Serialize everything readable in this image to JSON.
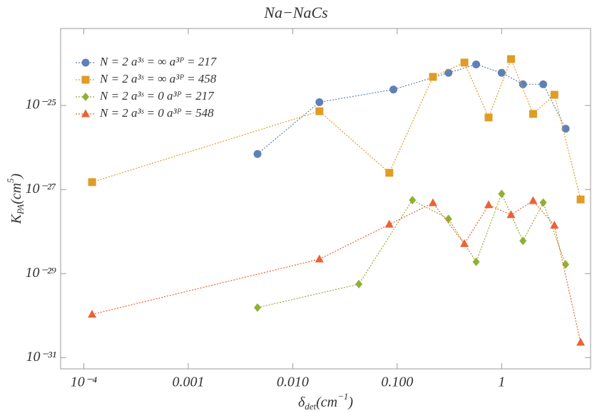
{
  "chart_data": {
    "type": "line",
    "title": "Na−NaCs",
    "x_label": [
      "δ",
      "det",
      "(cm",
      "−1",
      ")"
    ],
    "y_label": [
      "K",
      "PA",
      "(cm",
      "5",
      ")"
    ],
    "log_x": true,
    "log_y": true,
    "grid": false,
    "legend": "top-left",
    "xlim": [
      6e-05,
      7.1
    ],
    "ylim": [
      5.4e-32,
      6.8e-24
    ],
    "xticks": [
      {
        "value": 0.0001,
        "label": "10⁻⁴"
      },
      0.001,
      {
        "value": 0.01,
        "label": "0.010"
      },
      {
        "value": 0.1,
        "label": "0.100"
      },
      1
    ],
    "yticks": [
      {
        "value": 1e-31,
        "label": "10⁻³¹"
      },
      {
        "value": 1e-29,
        "label": "10⁻²⁹"
      },
      {
        "value": 1e-27,
        "label": "10⁻²⁷"
      },
      {
        "value": 1e-25,
        "label": "10⁻²⁵"
      }
    ],
    "series": [
      {
        "name": "N = 2 a³ˢ = ∞ a³ᴾ = 217",
        "color": "#5e81b5",
        "marker": "circle",
        "x": [
          0.0046,
          0.018,
          0.092,
          0.31,
          0.57,
          1.0,
          1.6,
          2.5,
          4.1
        ],
        "values": [
          7e-27,
          1.2e-25,
          2.4e-25,
          6e-25,
          9.5e-25,
          6e-25,
          3.2e-25,
          3.2e-25,
          2.8e-26
        ]
      },
      {
        "name": "N = 2 a³ˢ = ∞ a³ᴾ = 458",
        "color": "#e19c24",
        "marker": "square",
        "x": [
          0.00012,
          0.018,
          0.084,
          0.22,
          0.44,
          0.75,
          1.23,
          2.0,
          3.2,
          5.7
        ],
        "values": [
          1.5e-27,
          7.3e-26,
          2.5e-27,
          4.8e-25,
          1.05e-24,
          5.2e-26,
          1.27e-24,
          6.3e-26,
          1.8e-25,
          5.8e-28
        ]
      },
      {
        "name": "N = 2 a³ˢ = 0 a³ᴾ = 217",
        "color": "#8fb032",
        "marker": "diamond",
        "x": [
          0.0046,
          0.043,
          0.14,
          0.31,
          0.57,
          1.0,
          1.6,
          2.5,
          4.1
        ],
        "values": [
          1.55e-30,
          5.6e-30,
          5.6e-28,
          2e-28,
          1.9e-29,
          7.9e-28,
          6e-29,
          4.9e-28,
          1.65e-29
        ]
      },
      {
        "name": "N = 2 a³ˢ = 0 a³ᴾ = 548",
        "color": "#eb6235",
        "marker": "triangle",
        "x": [
          0.00012,
          0.018,
          0.084,
          0.22,
          0.44,
          0.75,
          1.23,
          2.0,
          3.2,
          5.7
        ],
        "values": [
          1.07e-30,
          2.2e-29,
          1.48e-28,
          4.8e-28,
          5.1e-29,
          4.3e-28,
          2.5e-28,
          5.4e-28,
          1.4e-28,
          2.3e-31
        ]
      }
    ]
  }
}
